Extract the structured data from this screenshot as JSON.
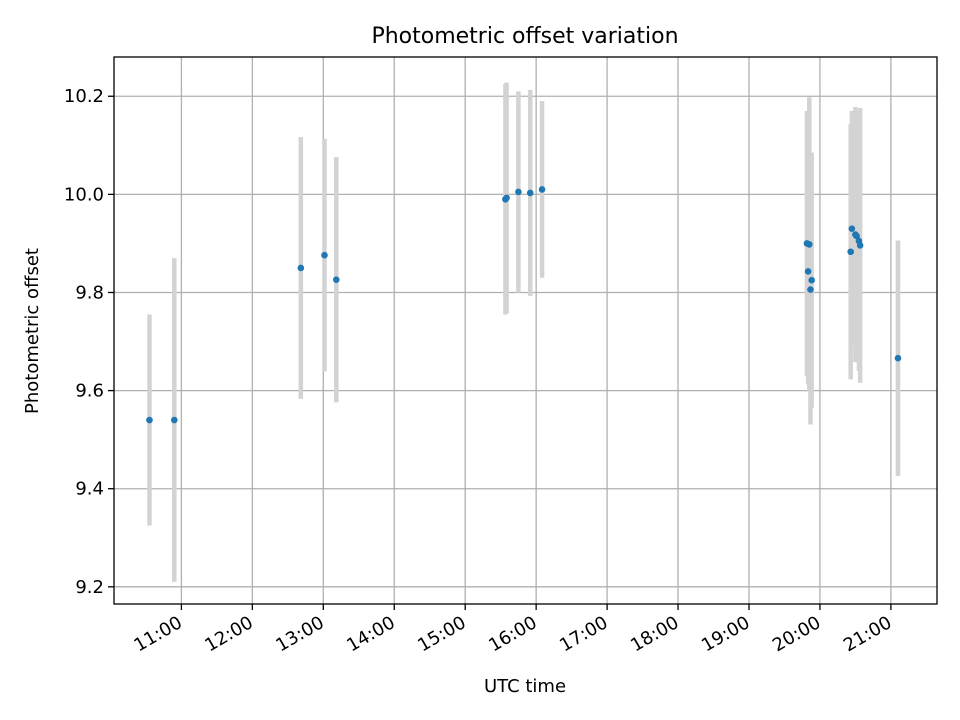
{
  "chart_data": {
    "type": "scatter",
    "title": "Photometric offset variation",
    "xlabel": "UTC time",
    "ylabel": "Photometric offset",
    "x_ticks": [
      "11:00",
      "12:00",
      "13:00",
      "14:00",
      "15:00",
      "16:00",
      "17:00",
      "18:00",
      "19:00",
      "20:00",
      "21:00"
    ],
    "y_ticks": [
      "9.2",
      "9.4",
      "9.6",
      "9.8",
      "10.0",
      "10.2"
    ],
    "xlim": [
      "10:03",
      "21:39"
    ],
    "ylim": [
      9.165,
      10.28
    ],
    "grid": true,
    "colors": {
      "point": "#1f77b4",
      "errorbar": "#d3d3d3",
      "grid": "#b0b0b0"
    },
    "series": [
      {
        "points": [
          {
            "x": "10:33",
            "y": 9.54,
            "err": 0.215
          },
          {
            "x": "10:54",
            "y": 9.54,
            "err": 0.33
          },
          {
            "x": "12:41",
            "y": 9.85,
            "err": 0.267
          },
          {
            "x": "13:01",
            "y": 9.876,
            "err": 0.237
          },
          {
            "x": "13:11",
            "y": 9.826,
            "err": 0.25
          },
          {
            "x": "15:34",
            "y": 9.99,
            "err": 0.235
          },
          {
            "x": "15:35",
            "y": 9.993,
            "err": 0.235
          },
          {
            "x": "15:45",
            "y": 10.005,
            "err": 0.205
          },
          {
            "x": "15:55",
            "y": 10.003,
            "err": 0.21
          },
          {
            "x": "16:05",
            "y": 10.01,
            "err": 0.18
          },
          {
            "x": "19:49",
            "y": 9.9,
            "err": 0.27
          },
          {
            "x": "19:50",
            "y": 9.843,
            "err": 0.23
          },
          {
            "x": "19:51",
            "y": 9.898,
            "err": 0.3
          },
          {
            "x": "19:52",
            "y": 9.806,
            "err": 0.275
          },
          {
            "x": "19:53",
            "y": 9.825,
            "err": 0.26
          },
          {
            "x": "20:26",
            "y": 9.883,
            "err": 0.26
          },
          {
            "x": "20:27",
            "y": 9.93,
            "err": 0.24
          },
          {
            "x": "20:30",
            "y": 9.918,
            "err": 0.26
          },
          {
            "x": "20:31",
            "y": 9.915,
            "err": 0.25
          },
          {
            "x": "20:33",
            "y": 9.905,
            "err": 0.265
          },
          {
            "x": "20:34",
            "y": 9.896,
            "err": 0.28
          },
          {
            "x": "21:06",
            "y": 9.666,
            "err": 0.24
          }
        ]
      }
    ]
  }
}
